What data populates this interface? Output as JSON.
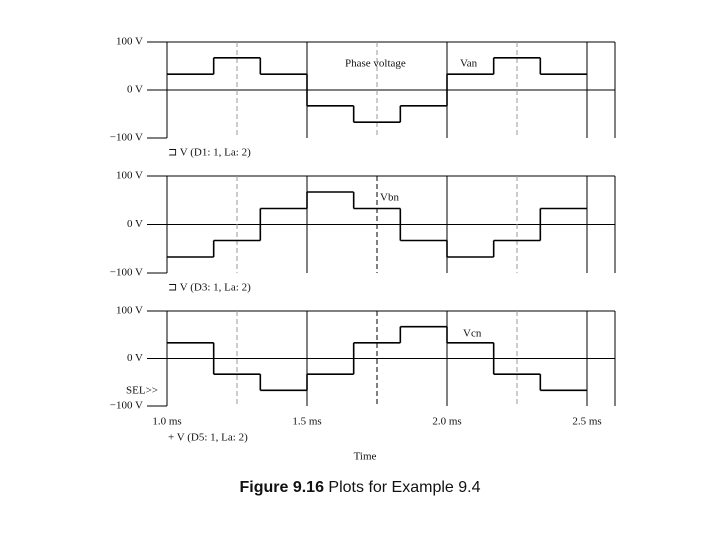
{
  "chart_data": [
    {
      "type": "line",
      "step": "post",
      "annotation": "Phase voltage",
      "footer": "⊐ V (D1: 1, La: 2)",
      "edges": [
        1.0,
        1.1667,
        1.3333,
        1.5,
        1.6667,
        1.8333,
        2.0,
        2.1667,
        2.3333,
        2.5
      ],
      "series": [
        {
          "name": "Van",
          "color": "#000000",
          "values": [
            33,
            67,
            33,
            -33,
            -67,
            -33,
            33,
            67,
            33
          ]
        }
      ],
      "xlim": [
        1.0,
        2.6
      ],
      "ylim": [
        -100,
        100
      ],
      "yticks": [
        {
          "value": 100,
          "label": "100 V"
        },
        {
          "value": 0,
          "label": "0 V"
        },
        {
          "value": -100,
          "label": "−100 V"
        }
      ]
    },
    {
      "type": "line",
      "step": "post",
      "footer": "⊐ V (D3: 1, La: 2)",
      "edges": [
        1.0,
        1.1667,
        1.3333,
        1.5,
        1.6667,
        1.8333,
        2.0,
        2.1667,
        2.3333,
        2.5
      ],
      "series": [
        {
          "name": "Vbn",
          "color": "#000000",
          "values": [
            -67,
            -33,
            33,
            67,
            33,
            -33,
            -67,
            -33,
            33
          ]
        }
      ],
      "xlim": [
        1.0,
        2.6
      ],
      "ylim": [
        -100,
        100
      ],
      "yticks": [
        {
          "value": 100,
          "label": "100 V"
        },
        {
          "value": 0,
          "label": "0 V"
        },
        {
          "value": -100,
          "label": "−100 V"
        }
      ]
    },
    {
      "type": "line",
      "step": "post",
      "annotation": "SEL>>",
      "footer": "+ V (D5: 1, La: 2)",
      "xlabel": "Time",
      "edges": [
        1.0,
        1.1667,
        1.3333,
        1.5,
        1.6667,
        1.8333,
        2.0,
        2.1667,
        2.3333,
        2.5
      ],
      "series": [
        {
          "name": "Vcn",
          "color": "#000000",
          "values": [
            33,
            -33,
            -67,
            -33,
            33,
            67,
            33,
            -33,
            -67
          ]
        }
      ],
      "xlim": [
        1.0,
        2.6
      ],
      "ylim": [
        -100,
        100
      ],
      "xticks": [
        {
          "value": 1.0,
          "label": "1.0 ms"
        },
        {
          "value": 1.5,
          "label": "1.5 ms"
        },
        {
          "value": 2.0,
          "label": "2.0 ms"
        },
        {
          "value": 2.5,
          "label": "2.5 ms"
        }
      ],
      "yticks": [
        {
          "value": 100,
          "label": "100 V"
        },
        {
          "value": 0,
          "label": "0 V"
        },
        {
          "value": -100,
          "label": "−100 V"
        }
      ]
    }
  ],
  "caption": {
    "label": "Figure 9.16",
    "text": "Plots for Example 9.4"
  }
}
